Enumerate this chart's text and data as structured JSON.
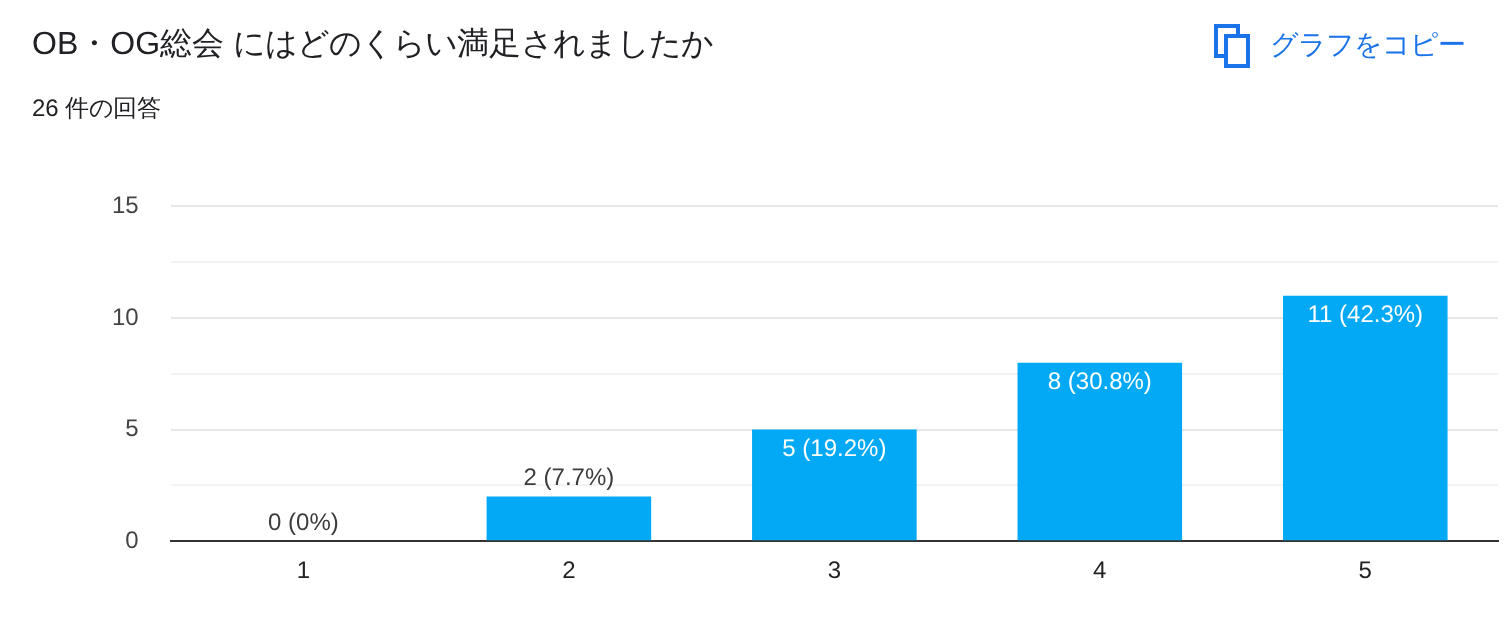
{
  "chart_data": {
    "type": "bar",
    "title": "OB・OG総会 にはどのくらい満足されましたか",
    "subtitle": "26 件の回答",
    "annotations": [
      "グラフをコピー"
    ],
    "categories": [
      "1",
      "2",
      "3",
      "4",
      "5"
    ],
    "values": [
      0,
      2,
      5,
      8,
      11
    ],
    "value_labels": [
      "0 (0%)",
      "2 (7.7%)",
      "5 (19.2%)",
      "8 (30.8%)",
      "11 (42.3%)"
    ],
    "color": "#03a9f4",
    "ylim": [
      0,
      15
    ],
    "yticks": [
      0,
      {
        "value": 2.5,
        "label": null
      },
      5,
      {
        "value": 7.5,
        "label": null
      },
      10,
      {
        "value": 12.5,
        "label": null
      },
      15
    ],
    "grid": "y"
  }
}
